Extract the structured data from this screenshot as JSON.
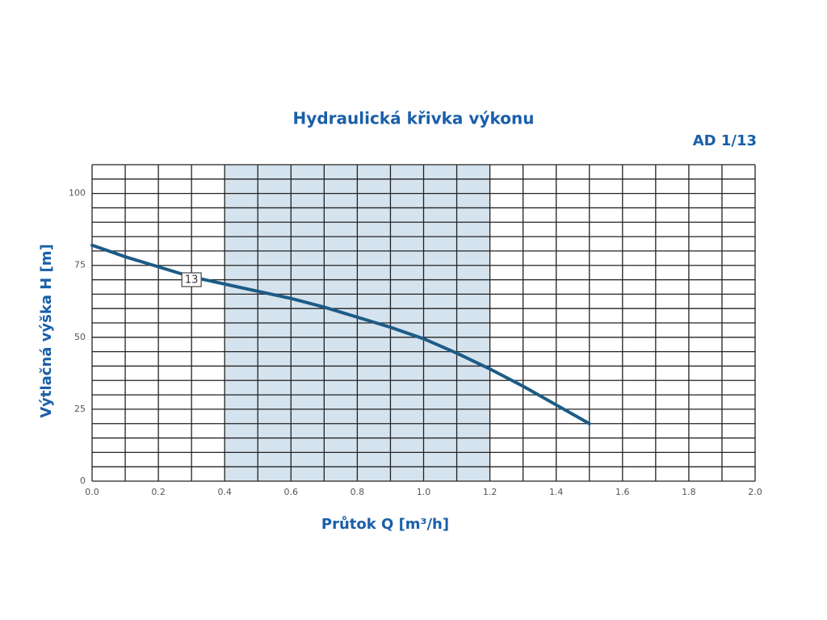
{
  "chart_data": {
    "type": "line",
    "title": "Hydraulická křivka výkonu",
    "subtitle": "AD 1/13",
    "x_label": "Průtok Q [m³/h]",
    "y_label": "Výtlačná výška H [m]",
    "x": [
      0,
      0.1,
      0.2,
      0.3,
      0.4,
      0.5,
      0.6,
      0.7,
      0.8,
      0.9,
      1.0,
      1.1,
      1.2,
      1.3,
      1.4,
      1.5
    ],
    "series": [
      {
        "name": "13",
        "color": "#1d5b86",
        "values": [
          82,
          78,
          74.5,
          71,
          68.5,
          66,
          63.5,
          60.5,
          57,
          53.5,
          49.5,
          44.5,
          39,
          33,
          26.5,
          20
        ]
      }
    ],
    "xlim": [
      0,
      2.0
    ],
    "ylim": [
      0,
      110
    ],
    "xticks": [
      {
        "value": 0,
        "label": "0.0"
      },
      0.2,
      0.4,
      0.6,
      0.8,
      {
        "value": 1,
        "label": "1.0"
      },
      1.2,
      1.4,
      1.6,
      1.8,
      {
        "value": 2,
        "label": "2.0"
      }
    ],
    "yticks": [
      0,
      25,
      50,
      75,
      100
    ],
    "highlight_range": [
      0.4,
      1.2
    ],
    "highlight_color": "#d5e3ee",
    "grid": true
  }
}
